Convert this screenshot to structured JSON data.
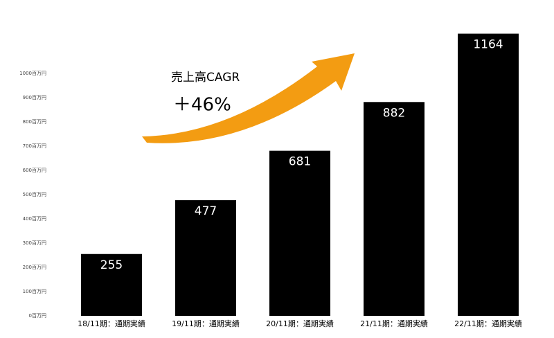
{
  "chart_data": {
    "type": "bar",
    "annotations": [
      "売上高CAGR",
      "＋46%"
    ],
    "categories": [
      "18/11期：通期実績",
      "19/11期：通期実績",
      "20/11期：通期実績",
      "21/11期：通期実績",
      "22/11期：通期実績"
    ],
    "values": [
      255,
      477,
      681,
      882,
      1164
    ],
    "color": "#000000",
    "ylim": [
      0,
      1200
    ],
    "yticks": [
      {
        "value": 0,
        "label": "0百万円"
      },
      {
        "value": 100,
        "label": "100百万円"
      },
      {
        "value": 200,
        "label": "200百万円"
      },
      {
        "value": 300,
        "label": "300百万円"
      },
      {
        "value": 400,
        "label": "400百万円"
      },
      {
        "value": 500,
        "label": "500百万円"
      },
      {
        "value": 600,
        "label": "600百万円"
      },
      {
        "value": 700,
        "label": "700百万円"
      },
      {
        "value": 800,
        "label": "800百万円"
      },
      {
        "value": 900,
        "label": "900百万円"
      },
      {
        "value": 1000,
        "label": "1000百万円"
      }
    ],
    "grid": false
  }
}
